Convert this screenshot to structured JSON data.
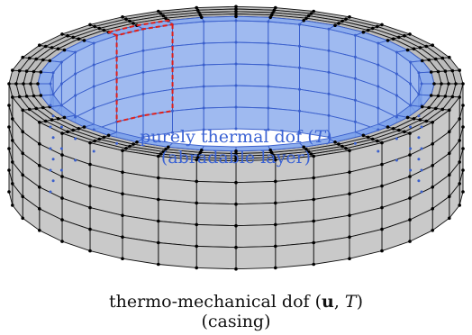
{
  "labels": {
    "thermal_line1_text": "purely thermal dof (",
    "thermal_line1_var": "T",
    "thermal_line1_close": ")",
    "thermal_line2": "(abradable layer)",
    "mech_line1_text": "thermo-mechanical dof (",
    "mech_line1_u": "u",
    "mech_line1_sep": ", ",
    "mech_line1_var": "T",
    "mech_line1_close": ")",
    "mech_line2": "(casing)"
  },
  "colors": {
    "casing_fill": "#c9c9c9",
    "casing_top": "#bdbdbd",
    "abradable_fill": "#7aa0ea",
    "abradable_edge": "#3a5fcc",
    "highlight": "#e0201b",
    "node": "#000000",
    "label_blue": "#3a62d4"
  },
  "mesh": {
    "circumferential_elements": 36,
    "casing_radial_layers": 4,
    "abradable_radial_layers": 1,
    "axial_layers": 5,
    "highlighted_elements": 2
  }
}
